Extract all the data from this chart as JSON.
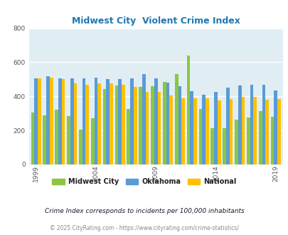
{
  "title": "Midwest City  Violent Crime Index",
  "years": [
    1999,
    2000,
    2001,
    2002,
    2003,
    2004,
    2005,
    2006,
    2007,
    2008,
    2009,
    2010,
    2011,
    2012,
    2013,
    2014,
    2015,
    2016,
    2017,
    2018,
    2019
  ],
  "midwest_city": [
    305,
    290,
    320,
    285,
    205,
    270,
    445,
    465,
    325,
    455,
    460,
    485,
    530,
    640,
    325,
    215,
    215,
    265,
    275,
    315,
    280
  ],
  "oklahoma": [
    505,
    520,
    505,
    505,
    505,
    510,
    500,
    500,
    505,
    530,
    505,
    480,
    460,
    430,
    410,
    425,
    450,
    465,
    470,
    470,
    435
  ],
  "national": [
    505,
    510,
    500,
    475,
    470,
    475,
    475,
    470,
    455,
    425,
    425,
    405,
    390,
    390,
    390,
    375,
    385,
    395,
    395,
    380,
    385
  ],
  "colors": {
    "midwest_city": "#8DC63F",
    "oklahoma": "#5B9BD5",
    "national": "#FFC000"
  },
  "bg_color": "#E0EEF4",
  "ylim": [
    0,
    800
  ],
  "yticks": [
    0,
    200,
    400,
    600,
    800
  ],
  "xtick_years": [
    1999,
    2004,
    2009,
    2014,
    2019
  ],
  "legend_labels": [
    "Midwest City",
    "Oklahoma",
    "National"
  ],
  "footnote1": "Crime Index corresponds to incidents per 100,000 inhabitants",
  "footnote2": "© 2025 CityRating.com - https://www.cityrating.com/crime-statistics/",
  "title_color": "#1F77B4",
  "footnote1_color": "#1a1a2e",
  "footnote2_color": "#888888"
}
